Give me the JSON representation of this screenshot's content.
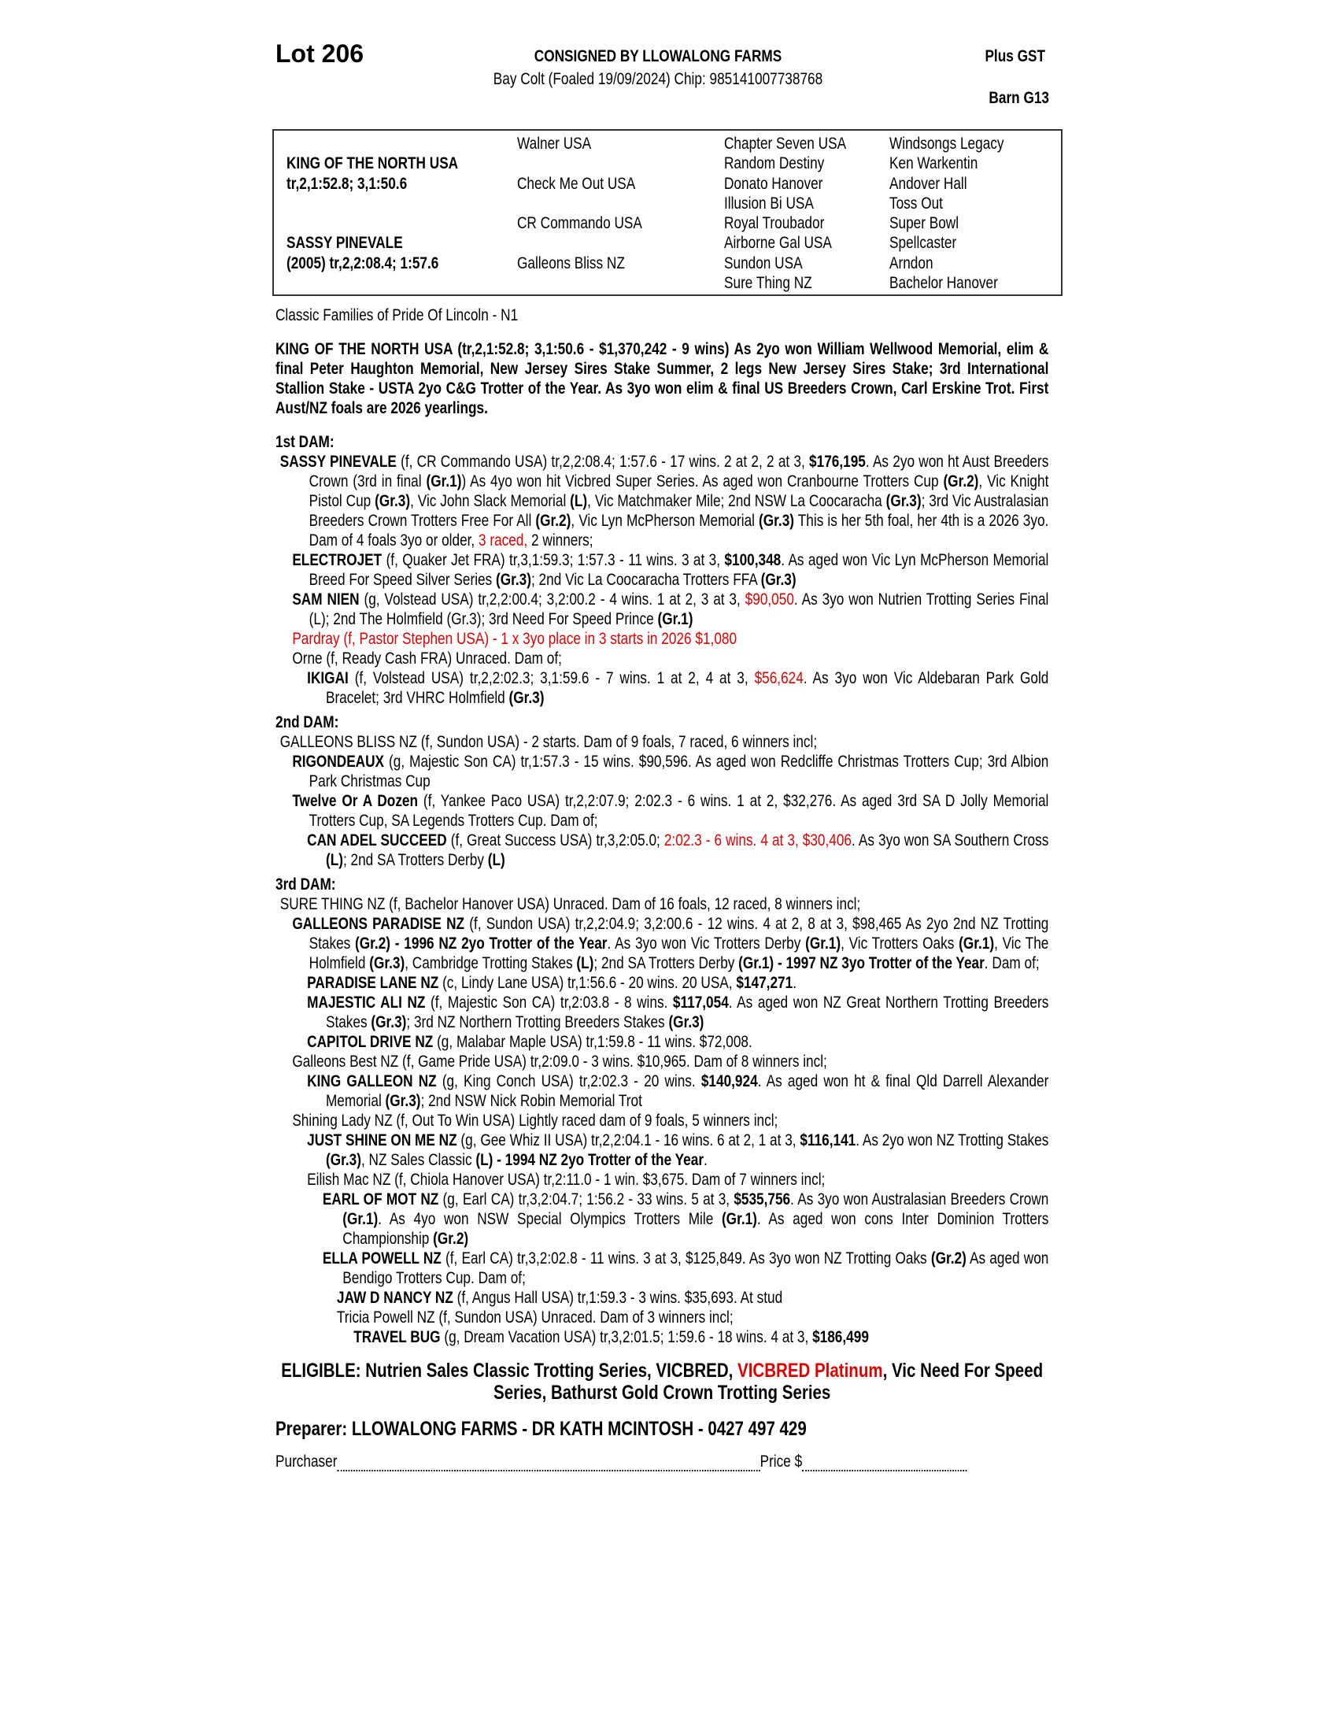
{
  "header": {
    "lot": "Lot 206",
    "consigned": "CONSIGNED BY LLOWALONG FARMS",
    "description": "Bay Colt (Foaled 19/09/2024) Chip: 985141007738768",
    "price_note": "Plus GST",
    "barn": "Barn G13"
  },
  "pedigree": {
    "sire": {
      "name": "KING OF THE NORTH USA",
      "record": "tr,2,1:52.8; 3,1:50.6"
    },
    "dam": {
      "name": "SASSY PINEVALE",
      "record": "(2005) tr,2,2:08.4; 1:57.6"
    },
    "grandparents": [
      "Walner USA",
      "Check Me Out USA",
      "CR Commando USA",
      "Galleons Bliss NZ"
    ],
    "great_grandparents": [
      "Chapter Seven USA",
      "Random Destiny",
      "Donato Hanover",
      "Illusion Bi USA",
      "Royal Troubador",
      "Airborne Gal USA",
      "Sundon USA",
      "Sure Thing NZ"
    ],
    "great_great_grandparents": [
      "Windsongs Legacy",
      "Ken Warkentin",
      "Andover Hall",
      "Toss Out",
      "Super Bowl",
      "Spellcaster",
      "Arndon",
      "Bachelor Hanover"
    ]
  },
  "family": "Classic Families of Pride Of Lincoln - N1",
  "sire_summary": "KING OF THE NORTH USA (tr,2,1:52.8; 3,1:50.6 - $1,370,242 - 9 wins) As 2yo won William Wellwood Memorial, elim & final Peter Haughton Memorial, New Jersey Sires Stake Summer, 2 legs New Jersey Sires Stake; 3rd International Stallion Stake - USTA 2yo C&G Trotter of the Year. As 3yo won elim & final US Breeders Crown, Carl Erskine Trot. First Aust/NZ foals are 2026 yearlings.",
  "colors": {
    "text": "#000000",
    "highlight": "#e00000"
  },
  "sections": [
    {
      "heading": "1st DAM:",
      "entries": [
        {
          "level": 0,
          "segs": [
            {
              "t": "SASSY PINEVALE",
              "s": "b"
            },
            {
              "t": " (f, CR Commando USA) tr,2,2:08.4; 1:57.6 - 17 wins. 2 at 2, 2 at 3, ",
              "s": ""
            },
            {
              "t": "$176,195",
              "s": "b"
            },
            {
              "t": ". As 2yo won ht Aust Breeders Crown (3rd in final ",
              "s": ""
            },
            {
              "t": "(Gr.1)",
              "s": "b"
            },
            {
              "t": ") As 4yo won hit Vicbred Super Series. As aged won Cranbourne Trotters Cup ",
              "s": ""
            },
            {
              "t": "(Gr.2)",
              "s": "b"
            },
            {
              "t": ", Vic Knight Pistol Cup ",
              "s": ""
            },
            {
              "t": "(Gr.3)",
              "s": "b"
            },
            {
              "t": ", Vic John Slack Memorial ",
              "s": ""
            },
            {
              "t": "(L)",
              "s": "b"
            },
            {
              "t": ", Vic Matchmaker Mile; 2nd NSW La Coocaracha ",
              "s": ""
            },
            {
              "t": "(Gr.3)",
              "s": "b"
            },
            {
              "t": "; 3rd Vic Australasian Breeders Crown Trotters Free For All ",
              "s": ""
            },
            {
              "t": "(Gr.2)",
              "s": "b"
            },
            {
              "t": ", Vic Lyn McPherson Memorial ",
              "s": ""
            },
            {
              "t": "(Gr.3)",
              "s": "b"
            },
            {
              "t": " This is her 5th foal, her 4th is a 2026 3yo. Dam of 4 foals 3yo or older, ",
              "s": ""
            },
            {
              "t": "3 raced,",
              "s": "r"
            },
            {
              "t": " 2 winners;",
              "s": ""
            }
          ]
        },
        {
          "level": 1,
          "segs": [
            {
              "t": "ELECTROJET",
              "s": "b"
            },
            {
              "t": " (f, Quaker Jet FRA) tr,3,1:59.3; 1:57.3 - 11 wins. 3 at 3, ",
              "s": ""
            },
            {
              "t": "$100,348",
              "s": "b"
            },
            {
              "t": ". As aged won Vic Lyn McPherson Memorial Breed For Speed Silver Series ",
              "s": ""
            },
            {
              "t": "(Gr.3)",
              "s": "b"
            },
            {
              "t": "; 2nd Vic La Coocaracha Trotters FFA ",
              "s": ""
            },
            {
              "t": "(Gr.3)",
              "s": "b"
            }
          ]
        },
        {
          "level": 1,
          "segs": [
            {
              "t": "SAM NIEN",
              "s": "b"
            },
            {
              "t": " (g, Volstead USA) tr,2,2:00.4; 3,2:00.2 - 4 wins. 1 at 2, 3 at 3, ",
              "s": ""
            },
            {
              "t": "$90,050",
              "s": "r"
            },
            {
              "t": ". As 3yo won Nutrien Trotting Series Final (L); 2nd The Holmfield (Gr.3); 3rd Need For Speed Prince ",
              "s": ""
            },
            {
              "t": "(Gr.1)",
              "s": "b"
            }
          ]
        },
        {
          "level": 1,
          "segs": [
            {
              "t": "Pardray (f, Pastor Stephen USA) - 1 x 3yo place in 3 starts in 2026 $1,080",
              "s": "r"
            }
          ]
        },
        {
          "level": 1,
          "segs": [
            {
              "t": "Orne (f, Ready Cash FRA) Unraced. Dam of;",
              "s": ""
            }
          ]
        },
        {
          "level": 2,
          "segs": [
            {
              "t": "IKIGAI",
              "s": "b"
            },
            {
              "t": " (f, Volstead USA) tr,2,2:02.3; 3,1:59.6 - 7 wins. 1 at 2, 4 at 3, ",
              "s": ""
            },
            {
              "t": "$56,624",
              "s": "r"
            },
            {
              "t": ". As 3yo won Vic Aldebaran Park Gold Bracelet; 3rd VHRC Holmfield ",
              "s": ""
            },
            {
              "t": "(Gr.3)",
              "s": "b"
            }
          ]
        }
      ]
    },
    {
      "heading": "2nd DAM:",
      "entries": [
        {
          "level": 0,
          "segs": [
            {
              "t": "GALLEONS BLISS NZ (f, Sundon USA) - 2 starts. Dam of 9 foals, 7 raced, 6 winners incl;",
              "s": ""
            }
          ]
        },
        {
          "level": 1,
          "segs": [
            {
              "t": "RIGONDEAUX",
              "s": "b"
            },
            {
              "t": " (g, Majestic Son CA) tr,1:57.3 - 15 wins. $90,596. As aged won Redcliffe Christmas Trotters Cup; 3rd Albion Park Christmas Cup",
              "s": ""
            }
          ]
        },
        {
          "level": 1,
          "segs": [
            {
              "t": "Twelve Or A Dozen",
              "s": "b"
            },
            {
              "t": " (f, Yankee Paco USA) tr,2,2:07.9; 2:02.3 - 6 wins. 1 at 2, $32,276. As aged 3rd SA D Jolly Memorial Trotters Cup, SA Legends Trotters Cup. Dam of;",
              "s": ""
            }
          ]
        },
        {
          "level": 2,
          "segs": [
            {
              "t": "CAN ADEL SUCCEED",
              "s": "b"
            },
            {
              "t": " (f, Great Success USA) tr,3,2:05.0; ",
              "s": ""
            },
            {
              "t": "2:02.3 - 6 wins. 4 at 3, $30,406",
              "s": "r"
            },
            {
              "t": ". As 3yo won SA Southern Cross ",
              "s": ""
            },
            {
              "t": "(L)",
              "s": "b"
            },
            {
              "t": "; 2nd SA Trotters Derby ",
              "s": ""
            },
            {
              "t": "(L)",
              "s": "b"
            }
          ]
        }
      ]
    },
    {
      "heading": "3rd DAM:",
      "entries": [
        {
          "level": 0,
          "segs": [
            {
              "t": "SURE THING NZ (f, Bachelor Hanover USA) Unraced. Dam of 16 foals, 12 raced, 8 winners incl;",
              "s": ""
            }
          ]
        },
        {
          "level": 1,
          "segs": [
            {
              "t": "GALLEONS PARADISE NZ",
              "s": "b"
            },
            {
              "t": " (f, Sundon USA) tr,2,2:04.9; 3,2:00.6 - 12 wins. 4 at 2, 8 at 3, $98,465 As 2yo 2nd NZ Trotting Stakes ",
              "s": ""
            },
            {
              "t": "(Gr.2) - 1996 NZ 2yo Trotter of the Year",
              "s": "b"
            },
            {
              "t": ". As 3yo won Vic Trotters Derby ",
              "s": ""
            },
            {
              "t": "(Gr.1)",
              "s": "b"
            },
            {
              "t": ", Vic Trotters Oaks ",
              "s": ""
            },
            {
              "t": "(Gr.1)",
              "s": "b"
            },
            {
              "t": ", Vic The Holmfield ",
              "s": ""
            },
            {
              "t": "(Gr.3)",
              "s": "b"
            },
            {
              "t": ", Cambridge Trotting Stakes ",
              "s": ""
            },
            {
              "t": "(L)",
              "s": "b"
            },
            {
              "t": "; 2nd SA Trotters Derby ",
              "s": ""
            },
            {
              "t": "(Gr.1) - 1997 NZ 3yo Trotter of the Year",
              "s": "b"
            },
            {
              "t": ". Dam of;",
              "s": ""
            }
          ]
        },
        {
          "level": 2,
          "segs": [
            {
              "t": "PARADISE LANE NZ",
              "s": "b"
            },
            {
              "t": " (c, Lindy Lane USA) tr,1:56.6 - 20 wins. 20 USA, ",
              "s": ""
            },
            {
              "t": "$147,271",
              "s": "b"
            },
            {
              "t": ".",
              "s": ""
            }
          ]
        },
        {
          "level": 2,
          "segs": [
            {
              "t": "MAJESTIC ALI NZ",
              "s": "b"
            },
            {
              "t": " (f, Majestic Son CA) tr,2:03.8 - 8 wins. ",
              "s": ""
            },
            {
              "t": "$117,054",
              "s": "b"
            },
            {
              "t": ". As aged won NZ Great Northern Trotting Breeders Stakes ",
              "s": ""
            },
            {
              "t": "(Gr.3)",
              "s": "b"
            },
            {
              "t": "; 3rd NZ Northern Trotting Breeders Stakes ",
              "s": ""
            },
            {
              "t": "(Gr.3)",
              "s": "b"
            }
          ]
        },
        {
          "level": 2,
          "segs": [
            {
              "t": "CAPITOL DRIVE NZ",
              "s": "b"
            },
            {
              "t": " (g, Malabar Maple USA) tr,1:59.8 - 11 wins. $72,008.",
              "s": ""
            }
          ]
        },
        {
          "level": 1,
          "segs": [
            {
              "t": "Galleons Best NZ (f, Game Pride USA) tr,2:09.0 - 3 wins. $10,965. Dam of 8 winners incl;",
              "s": ""
            }
          ]
        },
        {
          "level": 2,
          "segs": [
            {
              "t": "KING GALLEON NZ",
              "s": "b"
            },
            {
              "t": " (g, King Conch USA) tr,2:02.3 - 20 wins. ",
              "s": ""
            },
            {
              "t": "$140,924",
              "s": "b"
            },
            {
              "t": ". As aged won ht & final Qld Darrell Alexander Memorial ",
              "s": ""
            },
            {
              "t": "(Gr.3)",
              "s": "b"
            },
            {
              "t": "; 2nd NSW Nick Robin Memorial Trot",
              "s": ""
            }
          ]
        },
        {
          "level": 1,
          "segs": [
            {
              "t": "Shining Lady NZ (f, Out To Win USA) Lightly raced dam of 9 foals, 5 winners incl;",
              "s": ""
            }
          ]
        },
        {
          "level": 2,
          "segs": [
            {
              "t": "JUST SHINE ON ME NZ",
              "s": "b"
            },
            {
              "t": " (g, Gee Whiz II USA) tr,2,2:04.1 - 16 wins. 6 at 2, 1 at 3, ",
              "s": ""
            },
            {
              "t": "$116,141",
              "s": "b"
            },
            {
              "t": ". As 2yo won NZ Trotting Stakes ",
              "s": ""
            },
            {
              "t": "(Gr.3)",
              "s": "b"
            },
            {
              "t": ", NZ Sales Classic ",
              "s": ""
            },
            {
              "t": "(L) - 1994 NZ 2yo Trotter of the Year",
              "s": "b"
            },
            {
              "t": ".",
              "s": ""
            }
          ]
        },
        {
          "level": 2,
          "segs": [
            {
              "t": "Eilish Mac NZ (f, Chiola Hanover USA) tr,2:11.0 - 1 win. $3,675. Dam of 7 winners incl;",
              "s": ""
            }
          ]
        },
        {
          "level": 3,
          "segs": [
            {
              "t": "EARL OF MOT NZ",
              "s": "b"
            },
            {
              "t": " (g, Earl CA) tr,3,2:04.7; 1:56.2 - 33 wins. 5 at 3, ",
              "s": ""
            },
            {
              "t": "$535,756",
              "s": "b"
            },
            {
              "t": ". As 3yo won Australasian Breeders Crown ",
              "s": ""
            },
            {
              "t": "(Gr.1)",
              "s": "b"
            },
            {
              "t": ". As 4yo won NSW Special Olympics Trotters Mile ",
              "s": ""
            },
            {
              "t": "(Gr.1)",
              "s": "b"
            },
            {
              "t": ". As aged won cons Inter Dominion Trotters Championship ",
              "s": ""
            },
            {
              "t": "(Gr.2)",
              "s": "b"
            }
          ]
        },
        {
          "level": 3,
          "segs": [
            {
              "t": "ELLA POWELL NZ",
              "s": "b"
            },
            {
              "t": " (f, Earl CA) tr,3,2:02.8 - 11 wins. 3 at 3, $125,849. As 3yo won NZ Trotting Oaks ",
              "s": ""
            },
            {
              "t": "(Gr.2)",
              "s": "b"
            },
            {
              "t": " As aged won Bendigo Trotters Cup. Dam of;",
              "s": ""
            }
          ]
        },
        {
          "level": 4,
          "segs": [
            {
              "t": "JAW D NANCY NZ",
              "s": "b"
            },
            {
              "t": " (f, Angus Hall USA) tr,1:59.3 - 3 wins. $35,693. At stud",
              "s": ""
            }
          ]
        },
        {
          "level": 4,
          "segs": [
            {
              "t": "Tricia Powell NZ (f, Sundon USA) Unraced.  Dam of 3 winners incl;",
              "s": ""
            }
          ]
        },
        {
          "level": 5,
          "segs": [
            {
              "t": "TRAVEL BUG",
              "s": "b"
            },
            {
              "t": " (g, Dream Vacation USA) tr,3,2:01.5; 1:59.6 - 18 wins. 4 at 3, ",
              "s": ""
            },
            {
              "t": "$186,499",
              "s": "b"
            }
          ]
        }
      ]
    }
  ],
  "eligible": {
    "before": "ELIGIBLE: Nutrien Sales Classic Trotting Series, VICBRED, ",
    "highlight": "VICBRED Platinum",
    "after": ", Vic Need For Speed Series, Bathurst Gold Crown Trotting Series"
  },
  "preparer": "Preparer: LLOWALONG FARMS - DR KATH MCINTOSH - 0427 497 429",
  "purchase": {
    "purchaser_label": "Purchaser",
    "price_label": "Price $"
  }
}
